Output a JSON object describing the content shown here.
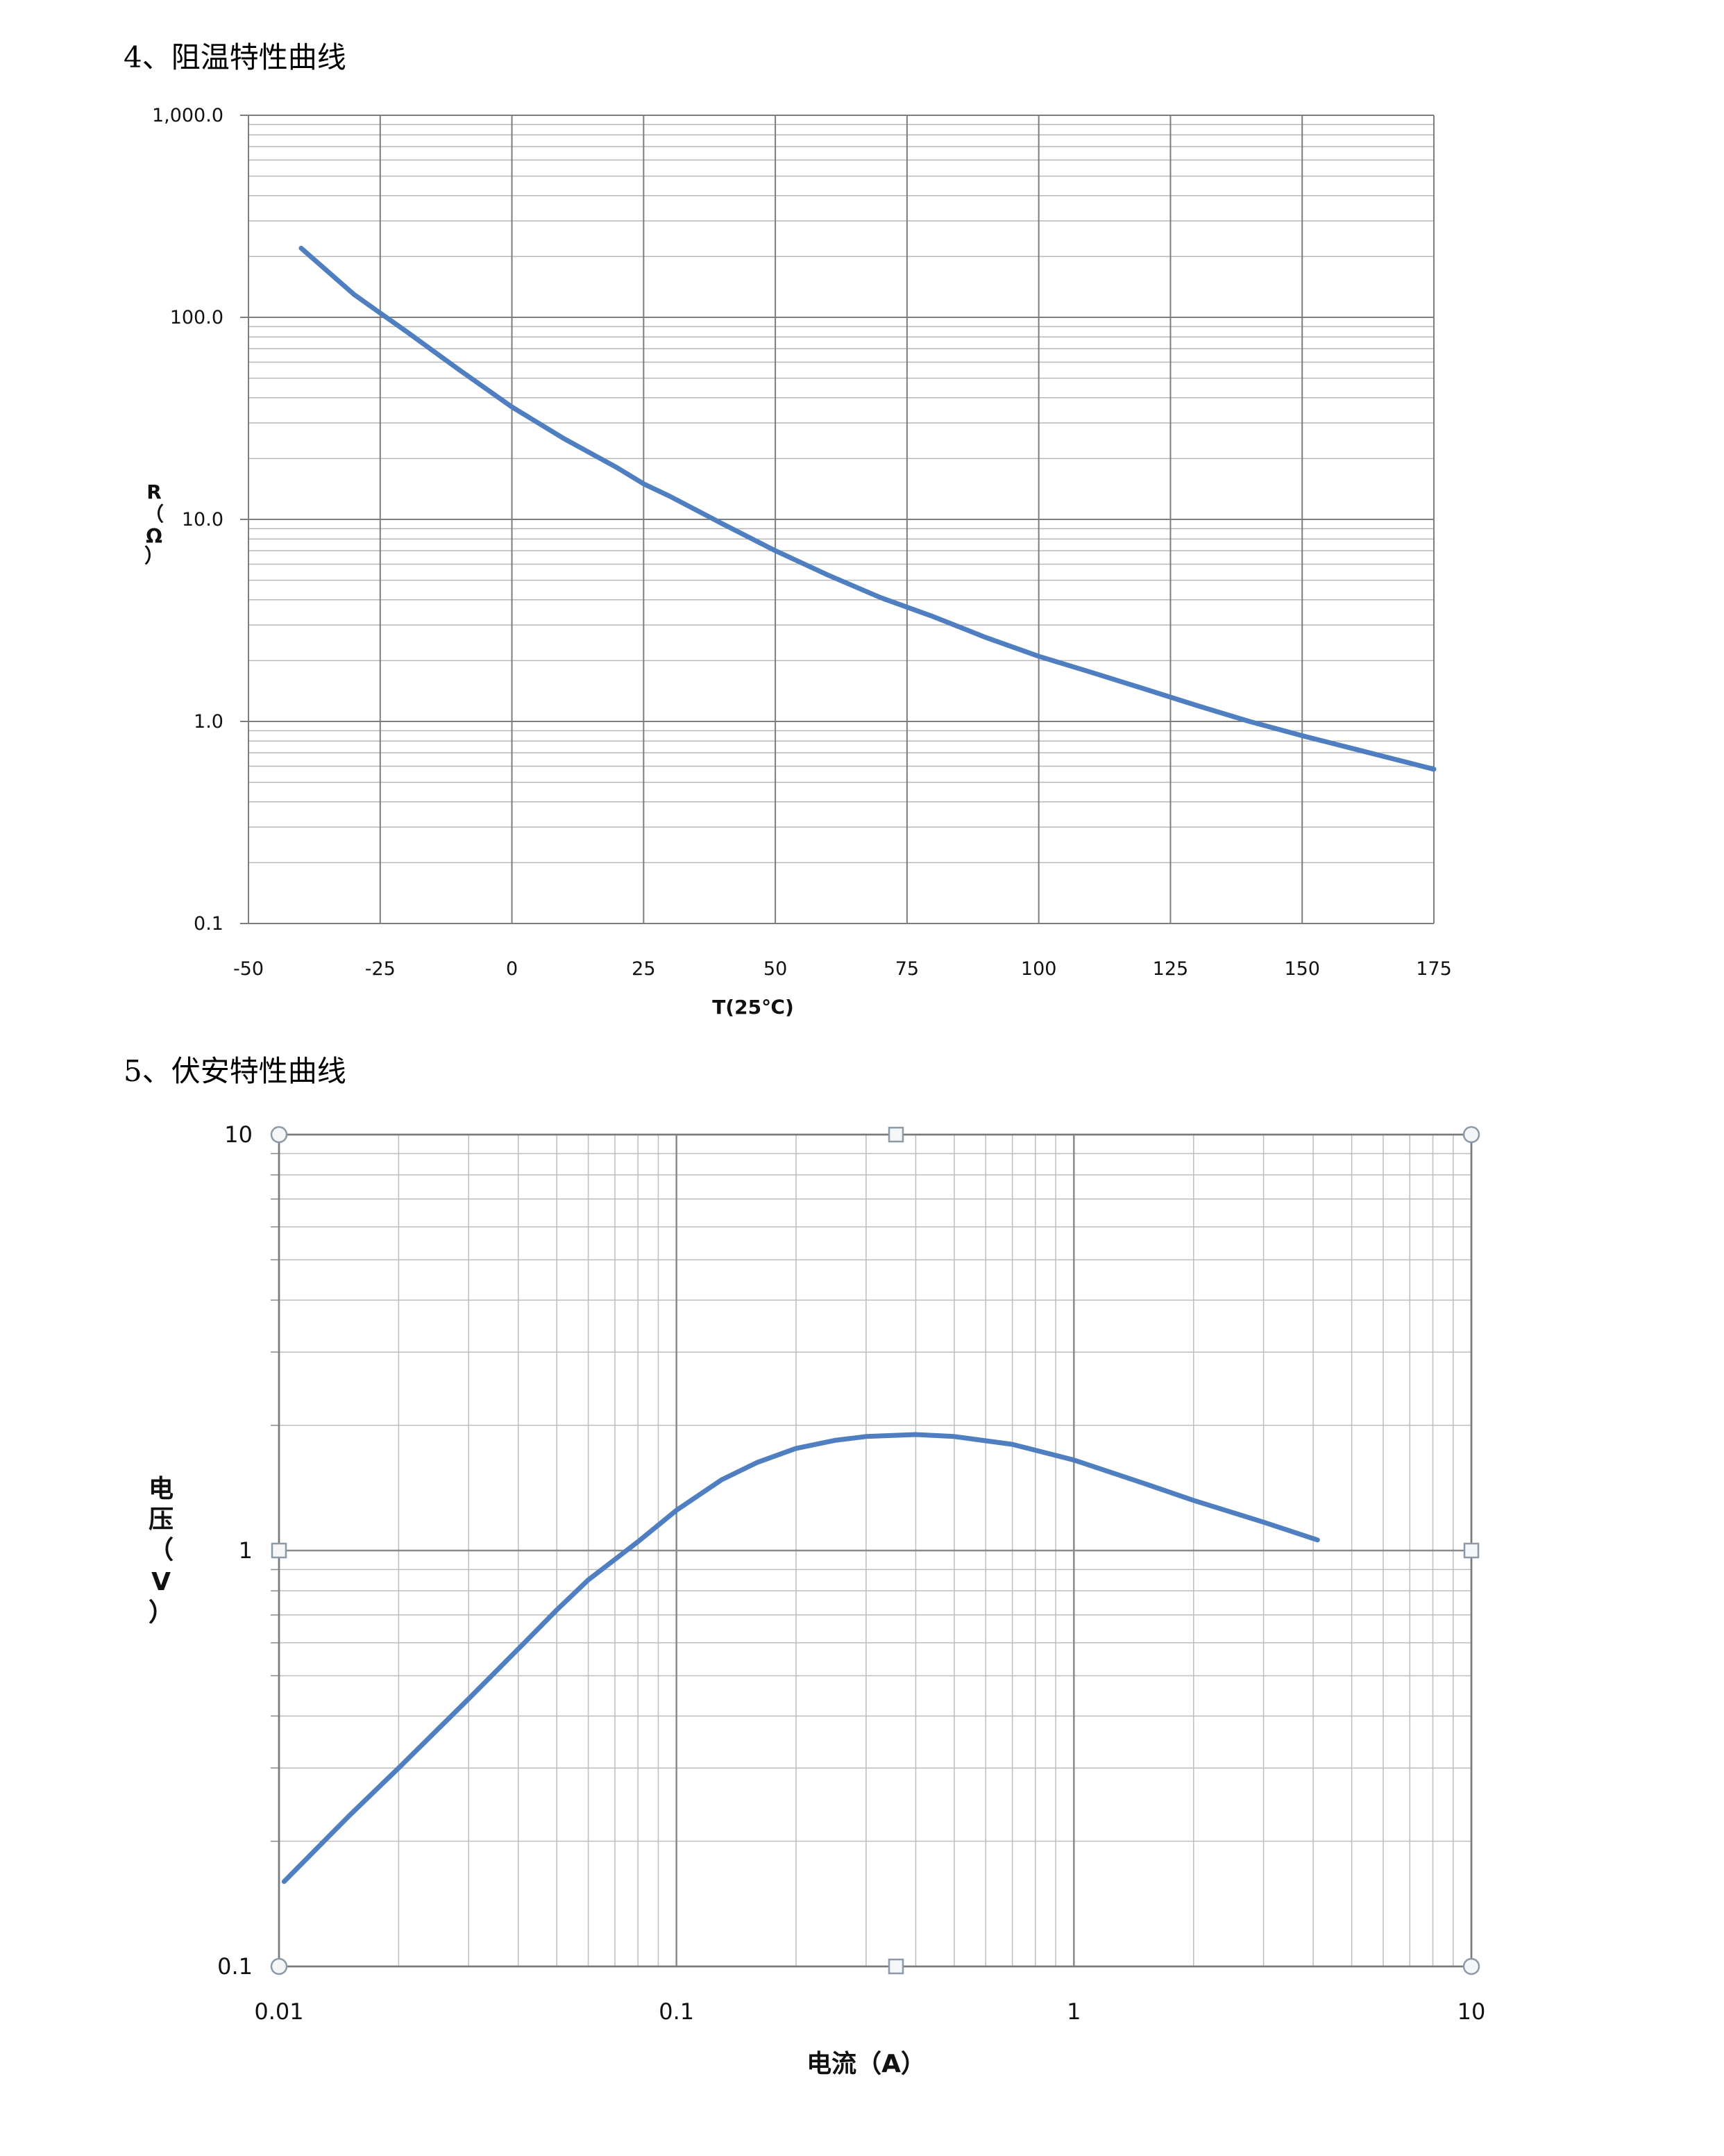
{
  "headings": {
    "rt": "4、阻温特性曲线",
    "iv": "5、伏安特性曲线"
  },
  "chart_data": [
    {
      "type": "line",
      "title": "",
      "xlabel": "T(25℃)",
      "ylabel_chars": [
        "R",
        "（",
        "Ω",
        "）"
      ],
      "x_scale": "linear",
      "y_scale": "log",
      "xlim": [
        -50,
        175
      ],
      "ylim": [
        0.1,
        1000
      ],
      "x_ticks": [
        -50,
        -25,
        0,
        25,
        50,
        75,
        100,
        125,
        150,
        175
      ],
      "x_tick_labels": [
        "-50",
        "-25",
        "0",
        "25",
        "50",
        "75",
        "100",
        "125",
        "150",
        "175"
      ],
      "y_ticks": [
        0.1,
        1,
        10,
        100,
        1000
      ],
      "y_tick_labels": [
        "0.1",
        "1.0",
        "10.0",
        "100.0",
        "1,000.0"
      ],
      "grid": true,
      "line_color": "#4f7fc0",
      "series": [
        {
          "x": [
            -40,
            -30,
            -25,
            -20,
            -10,
            0,
            10,
            20,
            25,
            30,
            40,
            50,
            60,
            70,
            80,
            90,
            100,
            110,
            120,
            130,
            140,
            150,
            160,
            175
          ],
          "y": [
            220,
            130,
            105,
            85,
            55,
            36,
            25,
            18,
            15,
            13,
            9.5,
            7,
            5.3,
            4.1,
            3.3,
            2.6,
            2.1,
            1.75,
            1.45,
            1.2,
            1.0,
            0.85,
            0.73,
            0.58
          ]
        }
      ]
    },
    {
      "type": "line",
      "title": "",
      "xlabel": "电流（A）",
      "ylabel_chars": [
        "电",
        "压",
        "（",
        "V",
        "）"
      ],
      "x_scale": "log",
      "y_scale": "log",
      "xlim": [
        0.01,
        10
      ],
      "ylim": [
        0.1,
        10
      ],
      "x_ticks": [
        0.01,
        0.1,
        1,
        10
      ],
      "x_tick_labels": [
        "0.01",
        "0.1",
        "1",
        "10"
      ],
      "y_ticks": [
        0.1,
        1,
        10
      ],
      "y_tick_labels": [
        "0.1",
        "1",
        "10"
      ],
      "grid": true,
      "line_color": "#4f7fc0",
      "series": [
        {
          "x": [
            0.0103,
            0.015,
            0.02,
            0.03,
            0.04,
            0.05,
            0.06,
            0.08,
            0.1,
            0.13,
            0.16,
            0.2,
            0.25,
            0.3,
            0.4,
            0.5,
            0.7,
            1.0,
            1.5,
            2.0,
            3.0,
            4.1
          ],
          "y": [
            0.16,
            0.23,
            0.3,
            0.44,
            0.58,
            0.72,
            0.85,
            1.05,
            1.25,
            1.48,
            1.63,
            1.76,
            1.84,
            1.88,
            1.9,
            1.88,
            1.8,
            1.65,
            1.45,
            1.32,
            1.17,
            1.06
          ]
        }
      ]
    }
  ]
}
